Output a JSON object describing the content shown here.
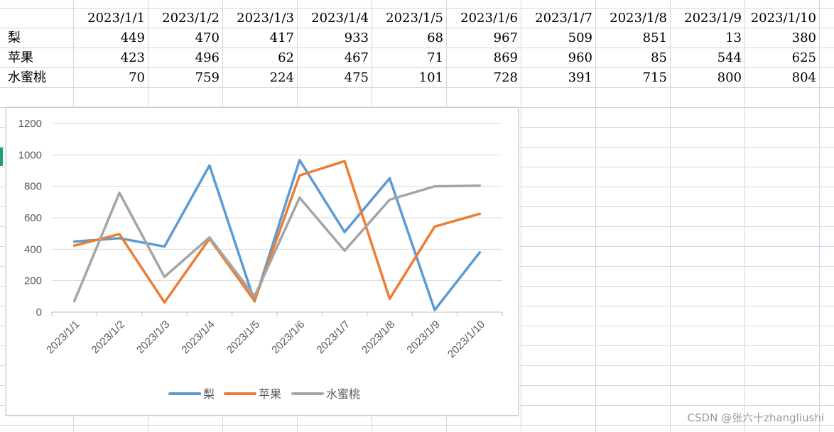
{
  "sheet": {
    "header_dates": [
      "2023/1/1",
      "2023/1/2",
      "2023/1/3",
      "2023/1/4",
      "2023/1/5",
      "2023/1/6",
      "2023/1/7",
      "2023/1/8",
      "2023/1/9",
      "2023/1/10"
    ],
    "rows": [
      {
        "label": "梨",
        "values": [
          "449",
          "470",
          "417",
          "933",
          "68",
          "967",
          "509",
          "851",
          "13",
          "380"
        ]
      },
      {
        "label": "苹果",
        "values": [
          "423",
          "496",
          "62",
          "467",
          "71",
          "869",
          "960",
          "85",
          "544",
          "625"
        ]
      },
      {
        "label": "水蜜桃",
        "values": [
          "70",
          "759",
          "224",
          "475",
          "101",
          "728",
          "391",
          "715",
          "800",
          "804"
        ]
      }
    ]
  },
  "chart_data": {
    "type": "line",
    "categories": [
      "2023/1/1",
      "2023/1/2",
      "2023/1/3",
      "2023/1/4",
      "2023/1/5",
      "2023/1/6",
      "2023/1/7",
      "2023/1/8",
      "2023/1/9",
      "2023/1/10"
    ],
    "series": [
      {
        "name": "梨",
        "color": "#5b9bd5",
        "values": [
          449,
          470,
          417,
          933,
          68,
          967,
          509,
          851,
          13,
          380
        ]
      },
      {
        "name": "苹果",
        "color": "#ed7d31",
        "values": [
          423,
          496,
          62,
          467,
          71,
          869,
          960,
          85,
          544,
          625
        ]
      },
      {
        "name": "水蜜桃",
        "color": "#a5a5a5",
        "values": [
          70,
          759,
          224,
          475,
          101,
          728,
          391,
          715,
          800,
          804
        ]
      }
    ],
    "ylim": [
      0,
      1200
    ],
    "yticks": [
      0,
      200,
      400,
      600,
      800,
      1000,
      1200
    ],
    "ytick_labels": [
      "0",
      "200",
      "400",
      "600",
      "800",
      "1000",
      "1200"
    ],
    "grid": true,
    "legend": "bottom",
    "title": "",
    "xlabel": "",
    "ylabel": ""
  },
  "watermark": "CSDN @张六十zhangliushi"
}
